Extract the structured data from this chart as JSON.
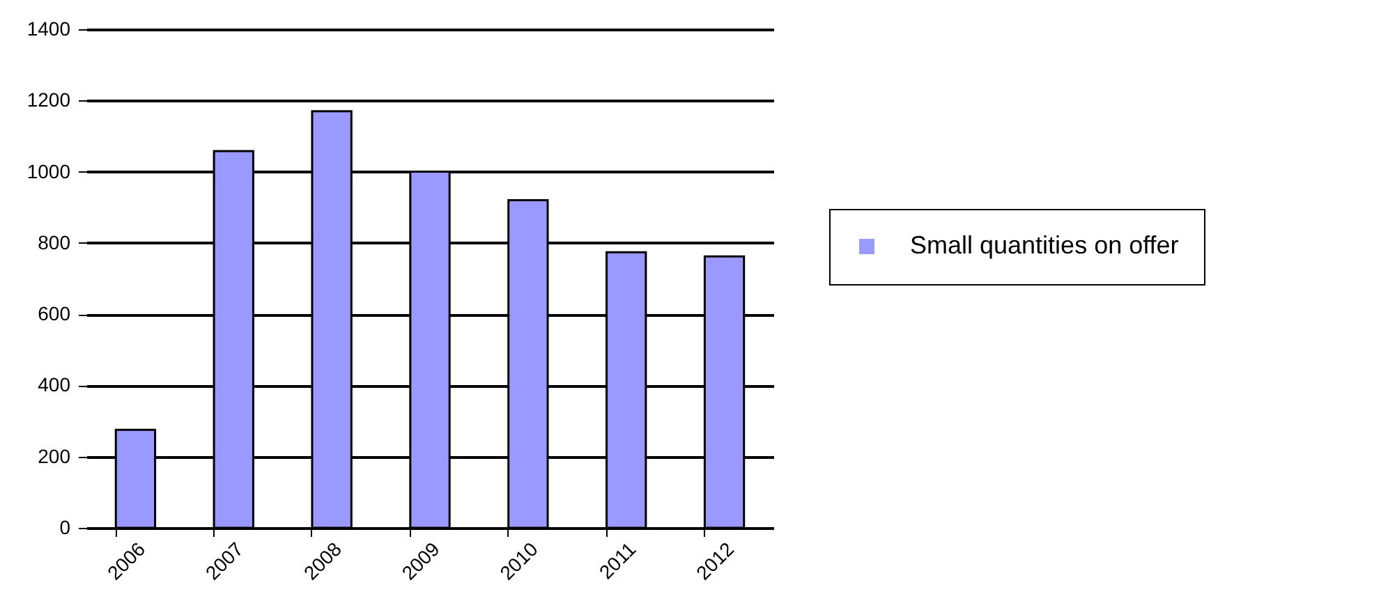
{
  "chart_data": {
    "type": "bar",
    "categories": [
      "2006",
      "2007",
      "2008",
      "2009",
      "2010",
      "2011",
      "2012"
    ],
    "series": [
      {
        "name": "Small quantities on offer",
        "color": "#9999ff",
        "values": [
          275,
          1058,
          1170,
          1000,
          920,
          774,
          762
        ]
      }
    ],
    "ylim": [
      0,
      1400
    ],
    "yticks": [
      0,
      200,
      400,
      600,
      800,
      1000,
      1200,
      1400
    ],
    "grid": "y",
    "legend": "right"
  }
}
